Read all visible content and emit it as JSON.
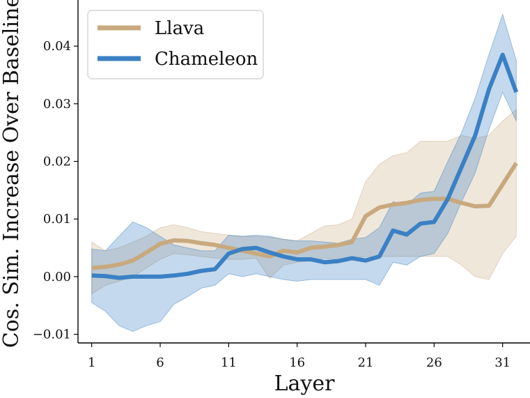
{
  "chart_data": {
    "type": "line",
    "title": "",
    "xlabel": "Layer",
    "ylabel": "Cos. Sim. Increase Over Baseline",
    "xlim": [
      0,
      33
    ],
    "ylim": [
      -0.0115,
      0.048
    ],
    "xticks": [
      1,
      6,
      11,
      16,
      21,
      26,
      31
    ],
    "xtick_labels": [
      "1",
      "6",
      "11",
      "16",
      "21",
      "26",
      "31"
    ],
    "yticks": [
      -0.01,
      0.0,
      0.01,
      0.02,
      0.03,
      0.04
    ],
    "ytick_labels": [
      "−0.01",
      "0.00",
      "0.01",
      "0.02",
      "0.03",
      "0.04"
    ],
    "legend_position": "top-left",
    "x": [
      1,
      2,
      3,
      4,
      5,
      6,
      7,
      8,
      9,
      10,
      11,
      12,
      13,
      14,
      15,
      16,
      17,
      18,
      19,
      20,
      21,
      22,
      23,
      24,
      25,
      26,
      27,
      28,
      29,
      30,
      31,
      32
    ],
    "series": [
      {
        "name": "Llava",
        "color": "#c8a97e",
        "values": [
          0.0015,
          0.0017,
          0.0021,
          0.0028,
          0.0042,
          0.0057,
          0.0063,
          0.0062,
          0.0058,
          0.0055,
          0.005,
          0.0045,
          0.004,
          0.0035,
          0.0045,
          0.0042,
          0.005,
          0.0052,
          0.0055,
          0.006,
          0.0105,
          0.012,
          0.0125,
          0.0128,
          0.0133,
          0.0135,
          0.0135,
          0.0128,
          0.0122,
          0.0123,
          0.016,
          0.0197
        ],
        "lower": [
          -0.003,
          -0.0015,
          -0.0008,
          0.0,
          0.0015,
          0.003,
          0.004,
          0.0038,
          0.0035,
          0.0032,
          0.003,
          0.003,
          0.0032,
          -0.0003,
          0.002,
          0.0025,
          0.0028,
          0.0032,
          0.003,
          0.0032,
          0.0035,
          0.0035,
          0.0035,
          0.0035,
          0.0035,
          0.0035,
          0.0035,
          0.002,
          0.0,
          -0.0005,
          0.004,
          0.007
        ],
        "upper": [
          0.006,
          0.0045,
          0.005,
          0.006,
          0.007,
          0.0085,
          0.009,
          0.0085,
          0.0078,
          0.0075,
          0.0072,
          0.007,
          0.007,
          0.0068,
          0.0065,
          0.0062,
          0.0075,
          0.0088,
          0.009,
          0.01,
          0.0165,
          0.0195,
          0.021,
          0.0215,
          0.0235,
          0.0235,
          0.0235,
          0.0245,
          0.024,
          0.0245,
          0.027,
          0.029
        ]
      },
      {
        "name": "Chameleon",
        "color": "#3b80c4",
        "values": [
          0.0002,
          0.0001,
          -0.0002,
          0.0,
          0.0,
          0.0,
          0.0002,
          0.0005,
          0.001,
          0.0013,
          0.004,
          0.0048,
          0.005,
          0.0042,
          0.0035,
          0.003,
          0.003,
          0.0025,
          0.0027,
          0.0032,
          0.0028,
          0.0035,
          0.008,
          0.0073,
          0.0092,
          0.0095,
          0.0135,
          0.019,
          0.0245,
          0.0325,
          0.0385,
          0.032
        ],
        "lower": [
          -0.0045,
          -0.006,
          -0.0085,
          -0.0095,
          -0.0085,
          -0.0078,
          -0.0048,
          -0.0035,
          -0.002,
          -0.0015,
          0.0005,
          0.0,
          0.0005,
          0.0,
          -0.0005,
          -0.0008,
          -0.0005,
          -0.0005,
          -0.0005,
          -0.0005,
          -0.0005,
          -0.0015,
          0.0025,
          0.002,
          0.0035,
          0.004,
          0.0075,
          0.013,
          0.018,
          0.0255,
          0.032,
          0.027
        ],
        "upper": [
          0.0048,
          0.0045,
          0.007,
          0.0095,
          0.0085,
          0.007,
          0.0055,
          0.005,
          0.0045,
          0.0045,
          0.0072,
          0.007,
          0.0072,
          0.007,
          0.0065,
          0.0062,
          0.0062,
          0.006,
          0.0058,
          0.0065,
          0.0068,
          0.0085,
          0.013,
          0.0125,
          0.0145,
          0.0148,
          0.02,
          0.025,
          0.031,
          0.0385,
          0.0455,
          0.0375
        ]
      }
    ]
  }
}
